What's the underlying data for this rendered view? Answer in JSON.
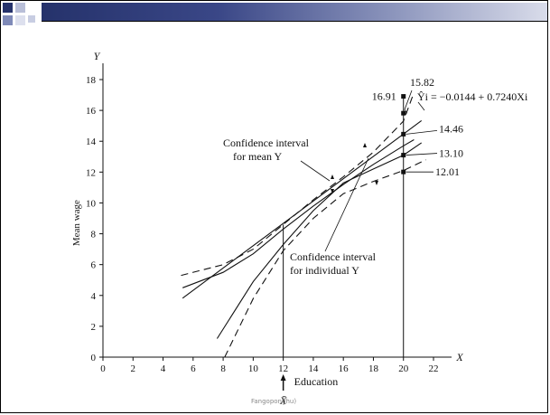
{
  "footer_text": "Fangoponghu)",
  "chart_data": {
    "type": "line",
    "ylabel_axis": "Y",
    "xlabel_axis": "X",
    "ylabel": "Mean wage",
    "xlim": [
      0,
      23
    ],
    "ylim": [
      0,
      19
    ],
    "xticks": [
      0,
      2,
      4,
      6,
      8,
      10,
      12,
      14,
      16,
      18,
      20,
      22
    ],
    "yticks": [
      0,
      2,
      4,
      6,
      8,
      10,
      12,
      14,
      16,
      18
    ],
    "equation": "Ŷi = −0.0144 + 0.7240Xi",
    "xbar_label": "X̄",
    "xbar_value": 12,
    "xbar_caption": "Education",
    "regression": {
      "intercept": -0.0144,
      "slope": 0.724,
      "x_range": [
        5.3,
        21.2
      ]
    },
    "series": [
      {
        "x": [
          5.3,
          8,
          10,
          12,
          14,
          16,
          18,
          20,
          20.7
        ],
        "y": [
          4.5,
          5.5,
          6.7,
          8.3,
          9.8,
          11.2,
          12.5,
          13.7,
          14.1
        ]
      },
      {
        "x": [
          7.6,
          10,
          12,
          14,
          16,
          18,
          20,
          21.2
        ],
        "y": [
          1.2,
          4.9,
          7.3,
          9.5,
          11.3,
          12.2,
          13.1,
          13.9
        ]
      },
      {
        "x": [
          5.2,
          8,
          10,
          12,
          14,
          16,
          18,
          20,
          20.6
        ],
        "y": [
          5.3,
          6.0,
          7.0,
          8.6,
          10.2,
          11.7,
          13.3,
          15.3,
          16.9
        ]
      },
      {
        "x": [
          8.1,
          10,
          12,
          14,
          16,
          18,
          20,
          21.5
        ],
        "y": [
          0.0,
          3.8,
          6.9,
          9.0,
          10.6,
          11.4,
          12.1,
          12.8
        ]
      }
    ],
    "vertical_lines": [
      12,
      20
    ],
    "points_at_20": [
      {
        "y": 16.91,
        "label": "16.91"
      },
      {
        "y": 15.82,
        "label": "15.82"
      },
      {
        "y": 14.46,
        "label": "14.46"
      },
      {
        "y": 13.1,
        "label": "13.10"
      },
      {
        "y": 12.01,
        "label": "12.01"
      }
    ],
    "annotations": {
      "mean_ci": [
        "Confidence interval",
        "for mean Y"
      ],
      "individual_ci": [
        "Confidence interval",
        "for individual Y"
      ]
    }
  }
}
